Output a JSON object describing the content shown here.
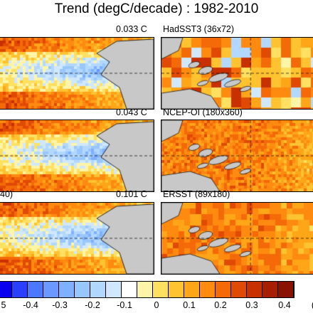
{
  "title": "Trend (degC/decade) : 1982-2010",
  "panels": [
    {
      "id": "left-1",
      "right_label": "0.033 C",
      "left_label": ""
    },
    {
      "id": "right-1",
      "label": "HadSST3 (36x72)"
    },
    {
      "id": "left-2",
      "right_label": "0.043 C",
      "left_label": ""
    },
    {
      "id": "right-2",
      "label": "NCEP-OI (180x360)"
    },
    {
      "id": "left-3",
      "right_label": "0.101 C",
      "left_label": "40)"
    },
    {
      "id": "right-3",
      "label": "ERSST (89x180)"
    }
  ],
  "colorbar": {
    "labels": [
      "5",
      "-0.4",
      "-0.3",
      "-0.2",
      "-0.1",
      "0",
      "0.1",
      "0.2",
      "0.3",
      "0.4",
      "("
    ],
    "colors": [
      "#0a00f0",
      "#2a40ff",
      "#4a78ff",
      "#6a98ff",
      "#7fb0ff",
      "#98c6ff",
      "#b2d8ff",
      "#cfe8ff",
      "#ffffff",
      "#fff5a8",
      "#ffe060",
      "#ffc230",
      "#ffa518",
      "#ff8a10",
      "#f46a08",
      "#e04a04",
      "#c83000",
      "#a81e00",
      "#8a1200"
    ]
  }
}
